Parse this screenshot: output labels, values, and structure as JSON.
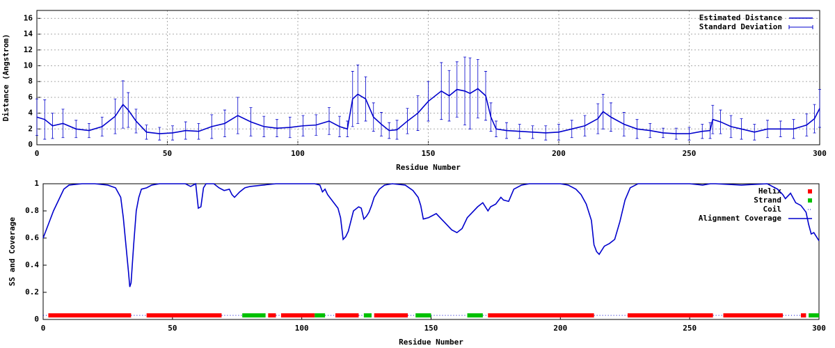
{
  "chart_data": [
    {
      "type": "line",
      "xlabel": "Residue Number",
      "ylabel": "Distance (Angstrom)",
      "xlim": [
        0,
        300
      ],
      "ylim": [
        0,
        17
      ],
      "xticks": [
        0,
        50,
        100,
        150,
        200,
        250,
        300
      ],
      "yticks": [
        0,
        2,
        4,
        6,
        8,
        10,
        12,
        14,
        16
      ],
      "grid": true,
      "legend": "top-right",
      "x": [
        0,
        3,
        6,
        10,
        15,
        20,
        25,
        30,
        33,
        35,
        38,
        42,
        47,
        52,
        57,
        62,
        67,
        72,
        77,
        82,
        87,
        92,
        97,
        102,
        107,
        112,
        116,
        119,
        121,
        123,
        126,
        129,
        132,
        135,
        138,
        142,
        146,
        150,
        155,
        158,
        161,
        164,
        166,
        169,
        172,
        174,
        176,
        180,
        185,
        190,
        195,
        200,
        205,
        210,
        215,
        217,
        220,
        225,
        230,
        235,
        240,
        245,
        250,
        255,
        258,
        259,
        262,
        266,
        270,
        275,
        280,
        285,
        290,
        295,
        298,
        300
      ],
      "series": [
        {
          "name": "Estimated Distance",
          "error_name": "Standard Deviation",
          "color": "#0000cc",
          "values": [
            3.5,
            3.2,
            2.4,
            2.7,
            2.0,
            1.8,
            2.3,
            3.6,
            5.1,
            4.4,
            3.0,
            1.6,
            1.4,
            1.5,
            1.8,
            1.7,
            2.3,
            2.7,
            3.7,
            2.9,
            2.3,
            2.1,
            2.2,
            2.4,
            2.5,
            3.0,
            2.3,
            2.0,
            5.8,
            6.4,
            5.8,
            3.5,
            2.6,
            1.8,
            1.9,
            3.0,
            4.0,
            5.5,
            6.8,
            6.2,
            7.0,
            6.8,
            6.5,
            7.1,
            6.2,
            3.5,
            2.0,
            1.8,
            1.7,
            1.6,
            1.5,
            1.6,
            2.0,
            2.4,
            3.3,
            4.2,
            3.5,
            2.6,
            2.0,
            1.8,
            1.5,
            1.4,
            1.4,
            1.7,
            1.8,
            3.2,
            2.9,
            2.3,
            2.0,
            1.6,
            2.0,
            2.0,
            2.0,
            2.5,
            3.3,
            4.6
          ],
          "errors": [
            2.3,
            2.5,
            1.6,
            1.8,
            1.1,
            0.9,
            1.2,
            2.2,
            3.0,
            2.2,
            1.5,
            0.9,
            0.8,
            0.9,
            1.1,
            1.0,
            1.5,
            1.7,
            2.3,
            1.8,
            1.3,
            1.1,
            1.3,
            1.3,
            1.3,
            1.7,
            1.3,
            1.0,
            3.5,
            3.7,
            2.8,
            1.8,
            1.5,
            1.0,
            1.2,
            1.6,
            2.2,
            2.5,
            3.6,
            3.2,
            3.5,
            4.3,
            4.5,
            3.7,
            3.1,
            1.8,
            1.0,
            1.0,
            0.9,
            0.8,
            0.9,
            1.0,
            1.1,
            1.3,
            1.9,
            2.2,
            1.8,
            1.5,
            1.2,
            0.9,
            0.6,
            0.7,
            0.8,
            0.9,
            1.0,
            1.8,
            1.5,
            1.4,
            1.3,
            1.0,
            1.1,
            1.0,
            1.2,
            1.4,
            1.8,
            2.4
          ]
        }
      ]
    },
    {
      "type": "line",
      "xlabel": "Residue Number",
      "ylabel": "SS and Coverage",
      "xlim": [
        0,
        300
      ],
      "ylim": [
        0,
        1
      ],
      "xticks": [
        0,
        50,
        100,
        150,
        200,
        250,
        300
      ],
      "yticks": [
        0,
        0.2,
        0.4,
        0.6,
        0.8,
        1
      ],
      "grid": false,
      "legend": "top-right",
      "x": [
        0,
        2,
        4,
        6,
        8,
        10,
        15,
        20,
        25,
        28,
        30,
        31,
        32,
        33,
        33.5,
        34,
        35,
        36,
        37,
        38,
        40,
        42,
        45,
        50,
        55,
        57,
        59,
        60,
        61,
        62,
        63,
        66,
        68,
        70,
        72,
        73,
        74,
        76,
        78,
        80,
        85,
        90,
        100,
        105,
        107,
        108,
        109,
        110,
        112,
        114,
        115,
        116,
        117,
        118,
        120,
        122,
        123,
        124,
        125,
        126,
        127,
        128,
        130,
        132,
        135,
        140,
        143,
        145,
        146,
        147,
        149,
        152,
        155,
        158,
        160,
        162,
        164,
        166,
        168,
        170,
        172,
        173,
        175,
        177,
        178,
        180,
        182,
        185,
        188,
        195,
        200,
        203,
        206,
        208,
        210,
        212,
        213,
        214,
        215,
        217,
        219,
        221,
        223,
        225,
        227,
        230,
        240,
        250,
        255,
        258,
        260,
        270,
        280,
        284,
        286,
        287,
        289,
        291,
        293,
        295,
        296,
        297,
        298,
        300
      ],
      "series": [
        {
          "name": "Helix",
          "color": "#ff0000",
          "level": 0.03,
          "ranges": [
            [
              2,
              34
            ],
            [
              40,
              69
            ],
            [
              87,
              90
            ],
            [
              92,
              105
            ],
            [
              113,
              122
            ],
            [
              128,
              141
            ],
            [
              172,
              213
            ],
            [
              226,
              259
            ],
            [
              263,
              286
            ],
            [
              293,
              295
            ]
          ]
        },
        {
          "name": "Strand",
          "color": "#00c000",
          "level": 0.03,
          "ranges": [
            [
              77,
              86
            ],
            [
              105,
              109
            ],
            [
              124,
              127
            ],
            [
              144,
              150
            ],
            [
              164,
              170
            ],
            [
              296,
              300
            ]
          ]
        },
        {
          "name": "Coil",
          "color": "#0000cc",
          "level": 0.03,
          "ranges": [
            [
              0,
              2
            ],
            [
              34,
              40
            ],
            [
              69,
              77
            ],
            [
              90,
              92
            ],
            [
              109,
              113
            ],
            [
              122,
              124
            ],
            [
              141,
              144
            ],
            [
              150,
              164
            ],
            [
              170,
              172
            ],
            [
              213,
              226
            ],
            [
              259,
              263
            ],
            [
              286,
              293
            ]
          ]
        },
        {
          "name": "Alignment Coverage",
          "color": "#0000cc",
          "values": [
            0.6,
            0.7,
            0.8,
            0.88,
            0.96,
            0.99,
            1,
            1,
            0.99,
            0.97,
            0.9,
            0.75,
            0.55,
            0.35,
            0.24,
            0.27,
            0.55,
            0.8,
            0.9,
            0.96,
            0.97,
            0.99,
            1,
            1,
            1,
            0.98,
            1,
            0.82,
            0.83,
            0.97,
            1,
            1,
            0.97,
            0.95,
            0.96,
            0.92,
            0.9,
            0.94,
            0.97,
            0.98,
            0.99,
            1,
            1,
            1,
            0.99,
            0.94,
            0.96,
            0.92,
            0.87,
            0.82,
            0.75,
            0.59,
            0.61,
            0.65,
            0.8,
            0.83,
            0.82,
            0.74,
            0.76,
            0.79,
            0.84,
            0.9,
            0.96,
            0.99,
            1,
            0.99,
            0.95,
            0.9,
            0.84,
            0.74,
            0.75,
            0.78,
            0.72,
            0.66,
            0.64,
            0.67,
            0.75,
            0.79,
            0.83,
            0.86,
            0.8,
            0.83,
            0.85,
            0.9,
            0.88,
            0.87,
            0.96,
            0.99,
            1,
            1,
            1,
            0.99,
            0.96,
            0.92,
            0.85,
            0.73,
            0.55,
            0.5,
            0.48,
            0.54,
            0.56,
            0.59,
            0.72,
            0.88,
            0.97,
            1,
            1,
            1,
            0.99,
            1,
            1,
            0.99,
            1,
            0.96,
            0.92,
            0.89,
            0.93,
            0.86,
            0.84,
            0.79,
            0.7,
            0.63,
            0.64,
            0.58
          ]
        }
      ]
    }
  ]
}
